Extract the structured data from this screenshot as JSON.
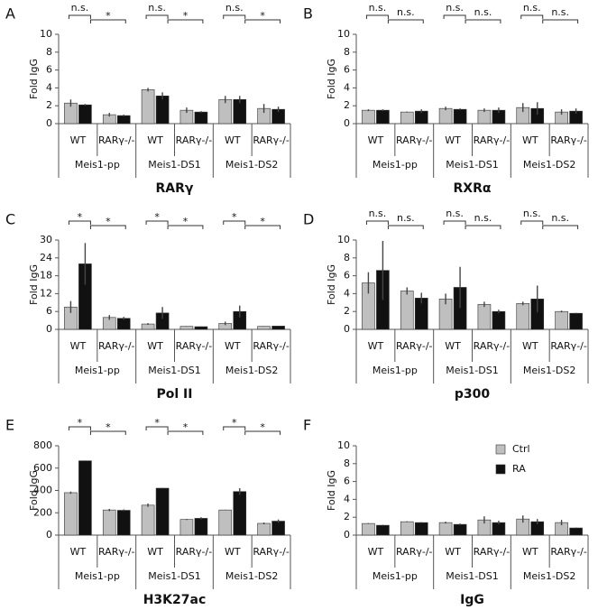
{
  "chart_data": [
    {
      "type": "bar",
      "panel": "A",
      "title": "RARγ",
      "y_label": "Fold IgG",
      "categories": [
        "WT",
        "RARγ-/-",
        "WT",
        "RARγ-/-",
        "WT",
        "RARγ-/-"
      ],
      "groups": [
        "Meis1-pp",
        "Meis1-DS1",
        "Meis1-DS2"
      ],
      "series": [
        {
          "color": "#bfbfbf",
          "values": [
            2.3,
            1.0,
            3.8,
            1.5,
            2.7,
            1.7
          ],
          "error": [
            0.4,
            0.2,
            0.2,
            0.3,
            0.4,
            0.5
          ]
        },
        {
          "color": "#111111",
          "values": [
            2.1,
            0.9,
            3.1,
            1.3,
            2.7,
            1.6
          ],
          "error": [
            0.1,
            0.1,
            0.4,
            0.1,
            0.4,
            0.3
          ]
        }
      ],
      "significance": [
        "n.s.",
        "*",
        "n.s.",
        "*",
        "n.s.",
        "*"
      ],
      "ylim": [
        0,
        10
      ],
      "yticks": [
        0,
        2,
        4,
        6,
        8,
        10
      ]
    },
    {
      "type": "bar",
      "panel": "B",
      "title": "RXRα",
      "y_label": "Fold IgG",
      "categories": [
        "WT",
        "RARγ-/-",
        "WT",
        "RARγ-/-",
        "WT",
        "RARγ-/-"
      ],
      "groups": [
        "Meis1-pp",
        "Meis1-DS1",
        "Meis1-DS2"
      ],
      "series": [
        {
          "color": "#bfbfbf",
          "values": [
            1.5,
            1.3,
            1.7,
            1.5,
            1.8,
            1.3
          ],
          "error": [
            0.1,
            0.05,
            0.2,
            0.2,
            0.5,
            0.3
          ]
        },
        {
          "color": "#111111",
          "values": [
            1.5,
            1.4,
            1.6,
            1.5,
            1.7,
            1.4
          ],
          "error": [
            0.1,
            0.2,
            0.1,
            0.3,
            0.7,
            0.3
          ]
        }
      ],
      "significance": [
        "n.s.",
        "n.s.",
        "n.s.",
        "n.s.",
        "n.s.",
        "n.s."
      ],
      "ylim": [
        0,
        10
      ],
      "yticks": [
        0,
        2,
        4,
        6,
        8,
        10
      ]
    },
    {
      "type": "bar",
      "panel": "C",
      "title": "Pol II",
      "y_label": "Fold IgG",
      "categories": [
        "WT",
        "RARγ-/-",
        "WT",
        "RARγ-/-",
        "WT",
        "RARγ-/-"
      ],
      "groups": [
        "Meis1-pp",
        "Meis1-DS1",
        "Meis1-DS2"
      ],
      "series": [
        {
          "color": "#bfbfbf",
          "values": [
            7.5,
            4.0,
            1.8,
            1.0,
            2.0,
            1.0
          ],
          "error": [
            2.0,
            0.8,
            0.3,
            0.1,
            0.6,
            0.1
          ]
        },
        {
          "color": "#111111",
          "values": [
            22,
            3.7,
            5.5,
            0.9,
            6.0,
            1.1
          ],
          "error": [
            7.0,
            0.5,
            2.0,
            0.1,
            2.0,
            0.1
          ]
        }
      ],
      "significance": [
        "*",
        "*",
        "*",
        "*",
        "*",
        "*"
      ],
      "ylim": [
        0,
        30
      ],
      "yticks": [
        0,
        6,
        12,
        18,
        24,
        30
      ]
    },
    {
      "type": "bar",
      "panel": "D",
      "title": "p300",
      "y_label": "Fold IgG",
      "categories": [
        "WT",
        "RARγ-/-",
        "WT",
        "RARγ-/-",
        "WT",
        "RARγ-/-"
      ],
      "groups": [
        "Meis1-pp",
        "Meis1-DS1",
        "Meis1-DS2"
      ],
      "series": [
        {
          "color": "#bfbfbf",
          "values": [
            5.2,
            4.3,
            3.4,
            2.8,
            2.9,
            2.0
          ],
          "error": [
            1.2,
            0.4,
            0.6,
            0.3,
            0.2,
            0.1
          ]
        },
        {
          "color": "#111111",
          "values": [
            6.6,
            3.5,
            4.7,
            2.0,
            3.4,
            1.8
          ],
          "error": [
            3.3,
            0.6,
            2.3,
            0.2,
            1.5,
            0.05
          ]
        }
      ],
      "significance": [
        "n.s.",
        "n.s.",
        "n.s.",
        "n.s.",
        "n.s.",
        "n.s."
      ],
      "ylim": [
        0,
        10
      ],
      "yticks": [
        0,
        2,
        4,
        6,
        8,
        10
      ]
    },
    {
      "type": "bar",
      "panel": "E",
      "title": "H3K27ac",
      "y_label": "Fold IgG",
      "categories": [
        "WT",
        "RARγ-/-",
        "WT",
        "RARγ-/-",
        "WT",
        "RARγ-/-"
      ],
      "groups": [
        "Meis1-pp",
        "Meis1-DS1",
        "Meis1-DS2"
      ],
      "series": [
        {
          "color": "#bfbfbf",
          "values": [
            380,
            225,
            268,
            140,
            225,
            105
          ],
          "error": [
            10,
            10,
            15,
            5,
            3,
            8
          ]
        },
        {
          "color": "#111111",
          "values": [
            665,
            222,
            420,
            150,
            390,
            125
          ],
          "error": [
            3,
            8,
            3,
            10,
            30,
            15
          ]
        }
      ],
      "significance": [
        "*",
        "*",
        "*",
        "*",
        "*",
        "*"
      ],
      "ylim": [
        0,
        800
      ],
      "yticks": [
        0,
        200,
        400,
        600,
        800
      ]
    },
    {
      "type": "bar",
      "panel": "F",
      "title": "IgG",
      "y_label": "Fold IgG",
      "categories": [
        "WT",
        "RARγ-/-",
        "WT",
        "RARγ-/-",
        "WT",
        "RARγ-/-"
      ],
      "groups": [
        "Meis1-pp",
        "Meis1-DS1",
        "Meis1-DS2"
      ],
      "series": [
        {
          "name": "Ctrl",
          "color": "#bfbfbf",
          "values": [
            1.3,
            1.5,
            1.4,
            1.7,
            1.8,
            1.4
          ],
          "error": [
            0.05,
            0.05,
            0.1,
            0.4,
            0.4,
            0.3
          ]
        },
        {
          "name": "RA",
          "color": "#111111",
          "values": [
            1.1,
            1.4,
            1.2,
            1.4,
            1.5,
            0.8
          ],
          "error": [
            0.05,
            0.05,
            0.1,
            0.2,
            0.3,
            0.05
          ]
        }
      ],
      "ylim": [
        0,
        10
      ],
      "yticks": [
        0,
        2,
        4,
        6,
        8,
        10
      ],
      "legend": "upper right"
    }
  ]
}
